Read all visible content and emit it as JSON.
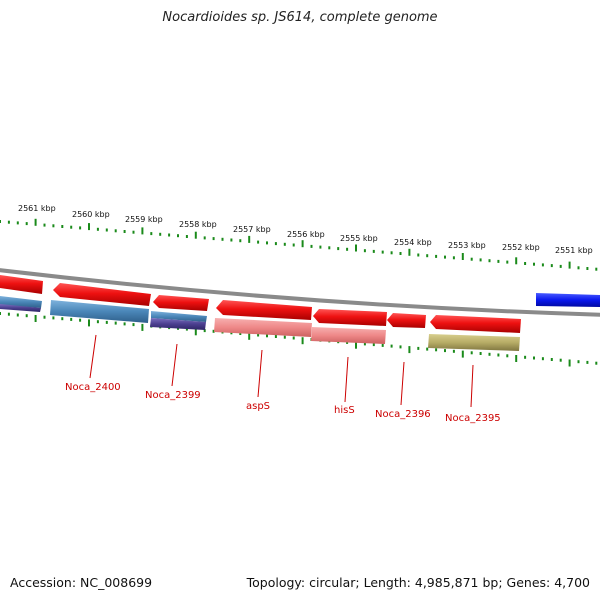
{
  "title": "Nocardioides sp. JS614, complete genome",
  "footer": {
    "accession": "Accession: NC_008699",
    "summary": "Topology: circular; Length: 4,985,871 bp; Genes: 4,700"
  },
  "scale_labels": [
    "2561 kbp",
    "2560 kbp",
    "2559 kbp",
    "2558 kbp",
    "2557 kbp",
    "2556 kbp",
    "2555 kbp",
    "2554 kbp",
    "2553 kbp",
    "2552 kbp",
    "2551 kbp"
  ],
  "gene_labels": [
    "Noca_2400",
    "Noca_2399",
    "aspS",
    "hisS",
    "Noca_2396",
    "Noca_2395"
  ],
  "colors": {
    "backbone": "#8a8a8a",
    "tick": "#1a8a1a",
    "cds": "#ee1111",
    "feature_blue": "#4a86b8",
    "feature_purple": "#4b3f8f",
    "feature_pink": "#ee8888",
    "feature_khaki": "#b7ac66",
    "cds_forward": "#0a18ee",
    "label": "#cc0000"
  }
}
